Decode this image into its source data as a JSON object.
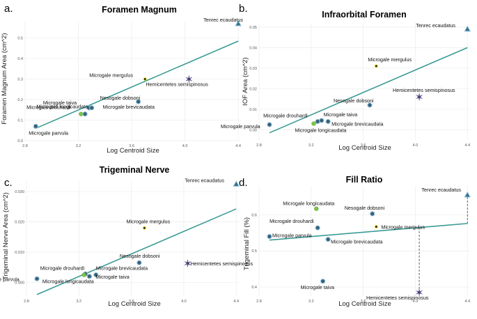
{
  "chart_data": [
    {
      "type": "scatter",
      "panel_label": "a.",
      "title": "Foramen Magnum",
      "xlabel": "Log Centroid Size",
      "ylabel": "Foramen Magnum Area (cm^2)",
      "xlim": [
        2.8,
        4.42
      ],
      "ylim": [
        0,
        0.58
      ],
      "xticks": [
        "2.8",
        "3.2",
        "3.6",
        "4.0",
        "4.4"
      ],
      "yticks": [
        "0.0",
        "0.1",
        "0.2",
        "0.3",
        "0.4",
        "0.5"
      ],
      "points": [
        {
          "label": "Tenrec ecaudatus",
          "x": 4.4,
          "y": 0.57,
          "marker": "triangle"
        },
        {
          "label": "Microgale mergulus",
          "x": 3.7,
          "y": 0.3,
          "marker": "dot"
        },
        {
          "label": "Hemicentetes semispinosus",
          "x": 4.03,
          "y": 0.3,
          "marker": "star"
        },
        {
          "label": "Nesogale dobsoni",
          "x": 3.65,
          "y": 0.19,
          "marker": "circle"
        },
        {
          "label": "Microgale taiva",
          "x": 3.28,
          "y": 0.16,
          "marker": "circle"
        },
        {
          "label": "Microgale brevicaudata",
          "x": 3.3,
          "y": 0.16,
          "marker": "circle"
        },
        {
          "label": "Microgale longicaudata",
          "x": 3.22,
          "y": 0.13,
          "marker": "green"
        },
        {
          "label": "Microgale drouhardi",
          "x": 3.25,
          "y": 0.13,
          "marker": "circle"
        },
        {
          "label": "Microgale parvula",
          "x": 2.88,
          "y": 0.07,
          "marker": "circle"
        }
      ],
      "fit": {
        "x": [
          2.88,
          4.4
        ],
        "y": [
          0.06,
          0.485
        ]
      },
      "annotations": []
    },
    {
      "type": "scatter",
      "panel_label": "b.",
      "title": "Infraorbital Foramen",
      "xlabel": "Log Centroid Size",
      "ylabel": "IOF Area (cm^2)",
      "xlim": [
        2.8,
        4.42
      ],
      "ylim": [
        -0.005,
        0.052
      ],
      "xticks": [
        "2.8",
        "3.2",
        "3.6",
        "4.0",
        "4.4"
      ],
      "yticks": [
        "0.00",
        "0.01",
        "0.02",
        "0.03",
        "0.04",
        "0.05"
      ],
      "points": [
        {
          "label": "Tenrec ecaudatus",
          "x": 4.4,
          "y": 0.049,
          "marker": "triangle"
        },
        {
          "label": "Microgale mergulus",
          "x": 3.7,
          "y": 0.031,
          "marker": "dot"
        },
        {
          "label": "Hemicentetes semispinosus",
          "x": 4.03,
          "y": 0.016,
          "marker": "star"
        },
        {
          "label": "Nesogale dobsoni",
          "x": 3.65,
          "y": 0.012,
          "marker": "circle"
        },
        {
          "label": "Microgale drouhardi",
          "x": 3.25,
          "y": 0.004,
          "marker": "circle"
        },
        {
          "label": "Microgale taiva",
          "x": 3.28,
          "y": 0.0045,
          "marker": "circle"
        },
        {
          "label": "Microgale brevicaudata",
          "x": 3.33,
          "y": 0.004,
          "marker": "circle"
        },
        {
          "label": "Microgale parvula",
          "x": 2.88,
          "y": 0.0025,
          "marker": "circle"
        },
        {
          "label": "Microgale longicaudata",
          "x": 3.22,
          "y": 0.003,
          "marker": "green"
        }
      ],
      "fit": {
        "x": [
          2.88,
          4.4
        ],
        "y": [
          -0.0015,
          0.04
        ]
      },
      "annotations": []
    },
    {
      "type": "scatter",
      "panel_label": "c.",
      "title": "Trigeminal Nerve",
      "xlabel": "Log Centroid Size",
      "ylabel": "Trigeminal Nerve Area (cm^2)",
      "xlim": [
        2.8,
        4.42
      ],
      "ylim": [
        -0.0045,
        0.0335
      ],
      "xticks": [
        "2.8",
        "3.2",
        "3.6",
        "4.0",
        "4.4"
      ],
      "yticks": [
        "0.000",
        "0.010",
        "0.020",
        "0.030"
      ],
      "points": [
        {
          "label": "Tenrec ecaudatus",
          "x": 4.4,
          "y": 0.0325,
          "marker": "triangle"
        },
        {
          "label": "Microgale mergulus",
          "x": 3.7,
          "y": 0.018,
          "marker": "dot"
        },
        {
          "label": "Nesogale dobsoni",
          "x": 3.66,
          "y": 0.0065,
          "marker": "circle"
        },
        {
          "label": "Hemicentetes semispinosus",
          "x": 4.03,
          "y": 0.0063,
          "marker": "star"
        },
        {
          "label": "Microgale drouhardi",
          "x": 3.25,
          "y": 0.0028,
          "marker": "circle"
        },
        {
          "label": "Microgale brevicaudata",
          "x": 3.33,
          "y": 0.0025,
          "marker": "circle"
        },
        {
          "label": "Microgale taiva",
          "x": 3.28,
          "y": 0.002,
          "marker": "circle"
        },
        {
          "label": "Microgale parvula",
          "x": 2.88,
          "y": 0.0012,
          "marker": "circle"
        },
        {
          "label": "Microgale longicaudata",
          "x": 3.24,
          "y": 0.0025,
          "marker": "green"
        }
      ],
      "fit": {
        "x": [
          2.88,
          4.4
        ],
        "y": [
          -0.004,
          0.0243
        ]
      },
      "annotations": []
    },
    {
      "type": "scatter",
      "panel_label": "d.",
      "title": "Fill Ratio",
      "xlabel": "Log Centroid Size",
      "ylabel": "Trigeminal Fill (%)",
      "xlim": [
        2.8,
        4.42
      ],
      "ylim": [
        0.375,
        0.68
      ],
      "xticks": [
        "2.8",
        "3.2",
        "3.6",
        "4.0",
        "4.4"
      ],
      "yticks": [
        "0.4",
        "0.5",
        "0.6"
      ],
      "points": [
        {
          "label": "Tenrec ecaudatus",
          "x": 4.4,
          "y": 0.655,
          "marker": "triangle"
        },
        {
          "label": "Microgale longicaudata",
          "x": 3.24,
          "y": 0.617,
          "marker": "green"
        },
        {
          "label": "Nesogale dobsoni",
          "x": 3.67,
          "y": 0.603,
          "marker": "circle"
        },
        {
          "label": "Microgale drouhardi",
          "x": 3.25,
          "y": 0.564,
          "marker": "circle"
        },
        {
          "label": "Microgale mergulus",
          "x": 3.7,
          "y": 0.567,
          "marker": "dot"
        },
        {
          "label": "Microgale parvula",
          "x": 2.88,
          "y": 0.54,
          "marker": "circle"
        },
        {
          "label": "Microgale brevicaudata",
          "x": 3.33,
          "y": 0.532,
          "marker": "circle"
        },
        {
          "label": "Microgale taiva",
          "x": 3.29,
          "y": 0.416,
          "marker": "circle"
        },
        {
          "label": "Hemicentetes semispinosus",
          "x": 4.03,
          "y": 0.385,
          "marker": "star"
        }
      ],
      "fit": {
        "x": [
          2.88,
          4.4
        ],
        "y": [
          0.53,
          0.576
        ]
      },
      "annotations": [
        {
          "type": "dashed-vertical",
          "x": 4.4,
          "y": [
            0.576,
            0.655
          ]
        },
        {
          "type": "dashed-vertical",
          "x": 4.03,
          "y": [
            0.385,
            0.567
          ]
        }
      ]
    }
  ],
  "colors": {
    "fit_line": "#3a9b96",
    "circle_fill": "#34617f",
    "circle_ring": "#9ac3d4",
    "triangle_fill": "#2f6f90",
    "dot_fill": "#1c1c1c",
    "dot_ring": "#e8e000",
    "green_fill": "#7ac943",
    "star": "#4a3a7a",
    "grid": "#ececec"
  }
}
